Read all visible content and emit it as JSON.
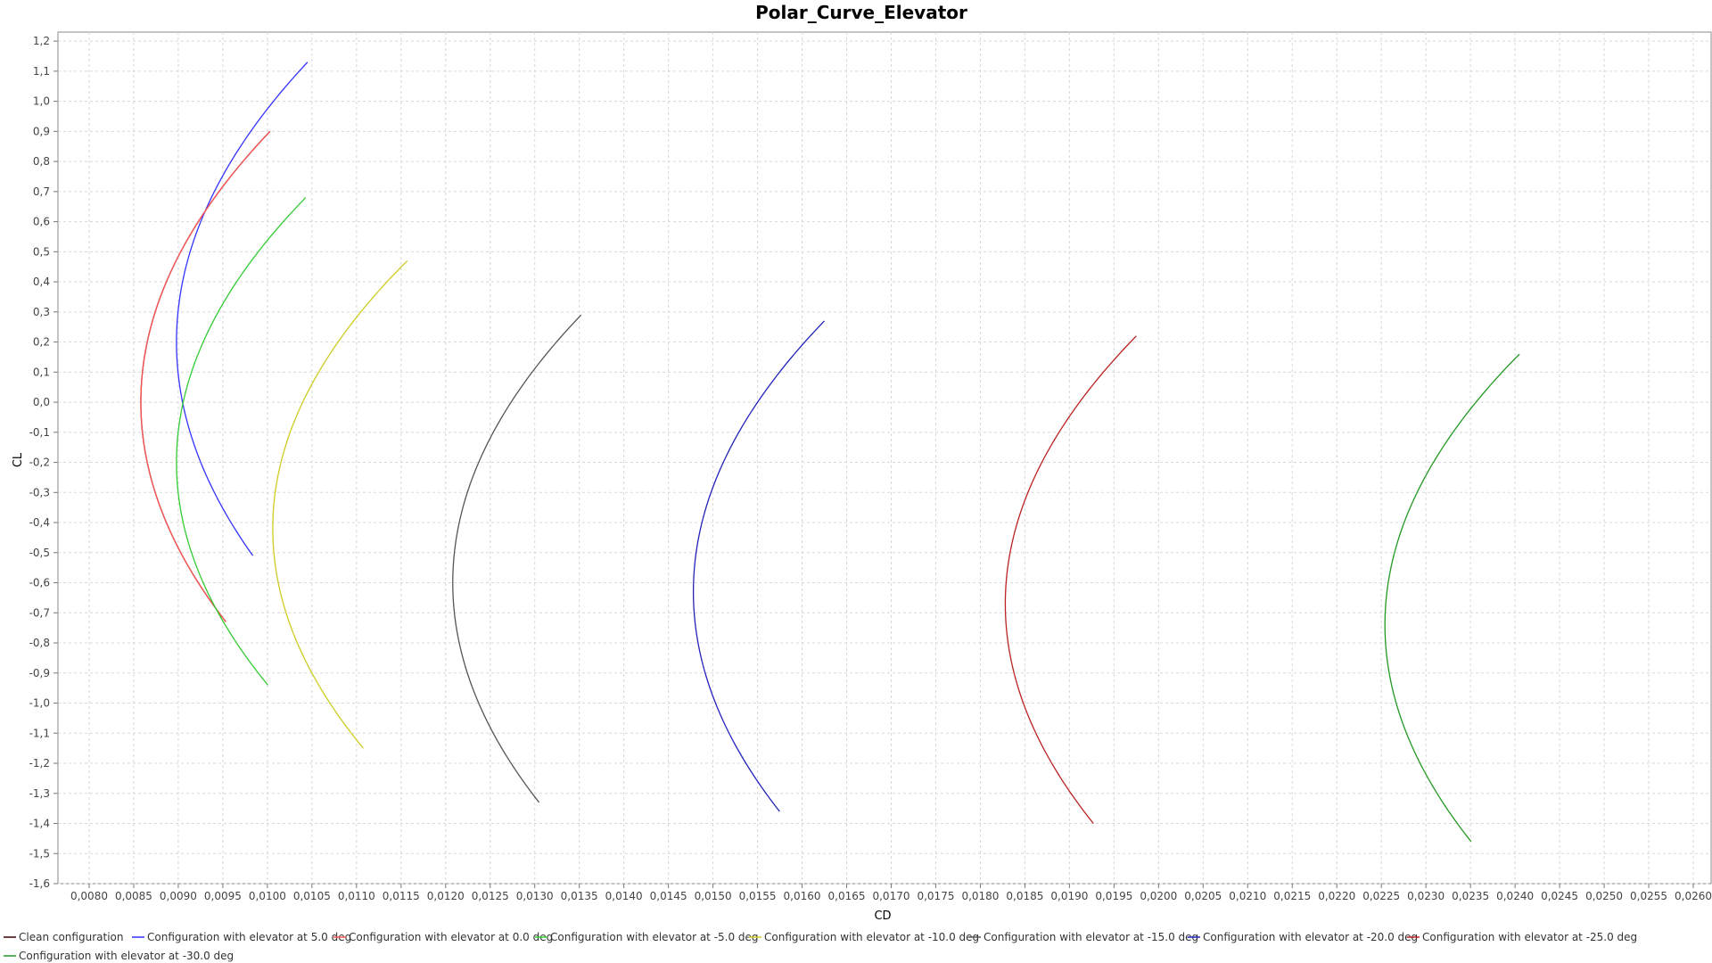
{
  "chart_data": {
    "type": "line",
    "title": "Polar_Curve_Elevator",
    "xlabel": "CD",
    "ylabel": "CL",
    "xlim": [
      0.00765,
      0.0262
    ],
    "ylim": [
      -1.6,
      1.23
    ],
    "xticks": [
      0.008,
      0.0085,
      0.009,
      0.0095,
      0.01,
      0.0105,
      0.011,
      0.0115,
      0.012,
      0.0125,
      0.013,
      0.0135,
      0.014,
      0.0145,
      0.015,
      0.0155,
      0.016,
      0.0165,
      0.017,
      0.0175,
      0.018,
      0.0185,
      0.019,
      0.0195,
      0.02,
      0.0205,
      0.021,
      0.0215,
      0.022,
      0.0225,
      0.023,
      0.0235,
      0.024,
      0.0245,
      0.025,
      0.0255,
      0.026
    ],
    "xtick_labels": [
      "0,0080",
      "0,0085",
      "0,0090",
      "0,0095",
      "0,0100",
      "0,0105",
      "0,0110",
      "0,0115",
      "0,0120",
      "0,0125",
      "0,0130",
      "0,0135",
      "0,0140",
      "0,0145",
      "0,0150",
      "0,0155",
      "0,0160",
      "0,0165",
      "0,0170",
      "0,0175",
      "0,0180",
      "0,0185",
      "0,0190",
      "0,0195",
      "0,0200",
      "0,0205",
      "0,0210",
      "0,0215",
      "0,0220",
      "0,0225",
      "0,0230",
      "0,0235",
      "0,0240",
      "0,0245",
      "0,0250",
      "0,0255",
      "0,0260"
    ],
    "yticks": [
      1.2,
      1.1,
      1.0,
      0.9,
      0.8,
      0.7,
      0.6,
      0.5,
      0.4,
      0.3,
      0.2,
      0.1,
      0.0,
      -0.1,
      -0.2,
      -0.3,
      -0.4,
      -0.5,
      -0.6,
      -0.7,
      -0.8,
      -0.9,
      -1.0,
      -1.1,
      -1.2,
      -1.3,
      -1.4,
      -1.5,
      -1.6
    ],
    "ytick_labels": [
      "1,2",
      "1,1",
      "1,0",
      "0,9",
      "0,8",
      "0,7",
      "0,6",
      "0,5",
      "0,4",
      "0,3",
      "0,2",
      "0,1",
      "0,0",
      "-0,1",
      "-0,2",
      "-0,3",
      "-0,4",
      "-0,5",
      "-0,6",
      "-0,7",
      "-0,8",
      "-0,9",
      "-1,0",
      "-1,1",
      "-1,2",
      "-1,3",
      "-1,4",
      "-1,5",
      "-1,6"
    ],
    "grid": true,
    "legend_position": "bottom",
    "series": [
      {
        "name": "Clean configuration",
        "color": "#3a0000",
        "cl_min": -0.73,
        "cl_max": 0.9,
        "cl_vertex": 0.0,
        "cd_vertex": 0.00858,
        "cd_at_max": 0.01003
      },
      {
        "name": "Configuration with elevator at 5.0 deg",
        "color": "#3333ff",
        "cl_min": -0.51,
        "cl_max": 1.13,
        "cl_vertex": 0.2,
        "cd_vertex": 0.00898,
        "cd_at_max": 0.01045
      },
      {
        "name": "Configuration with elevator at 0.0 deg",
        "color": "#ff5555",
        "cl_min": -0.73,
        "cl_max": 0.9,
        "cl_vertex": 0.0,
        "cd_vertex": 0.00858,
        "cd_at_max": 0.01003
      },
      {
        "name": "Configuration with elevator at -5.0 deg",
        "color": "#33cc33",
        "cl_min": -0.94,
        "cl_max": 0.68,
        "cl_vertex": -0.2,
        "cd_vertex": 0.00898,
        "cd_at_max": 0.01043
      },
      {
        "name": "Configuration with elevator at -10.0 deg",
        "color": "#cccc22",
        "cl_min": -1.15,
        "cl_max": 0.47,
        "cl_vertex": -0.42,
        "cd_vertex": 0.01006,
        "cd_at_max": 0.01157
      },
      {
        "name": "Configuration with elevator at -15.0 deg",
        "color": "#555555",
        "cl_min": -1.33,
        "cl_max": 0.29,
        "cl_vertex": -0.6,
        "cd_vertex": 0.01208,
        "cd_at_max": 0.01352
      },
      {
        "name": "Configuration with elevator at -20.0 deg",
        "color": "#2222bb",
        "cl_min": -1.36,
        "cl_max": 0.27,
        "cl_vertex": -0.63,
        "cd_vertex": 0.01478,
        "cd_at_max": 0.01625
      },
      {
        "name": "Configuration with elevator at -25.0 deg",
        "color": "#bb2222",
        "cl_min": -1.4,
        "cl_max": 0.22,
        "cl_vertex": -0.67,
        "cd_vertex": 0.01828,
        "cd_at_max": 0.01975
      },
      {
        "name": "Configuration with elevator at -30.0 deg",
        "color": "#229922",
        "cl_min": -1.46,
        "cl_max": 0.16,
        "cl_vertex": -0.74,
        "cd_vertex": 0.02254,
        "cd_at_max": 0.02405
      }
    ]
  }
}
